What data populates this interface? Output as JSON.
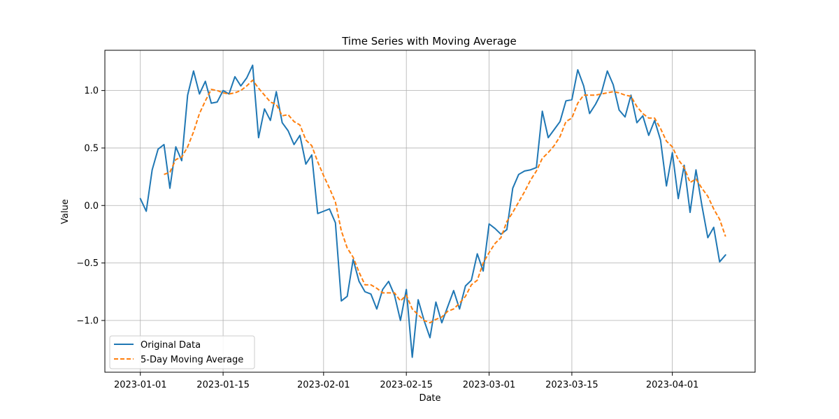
{
  "chart_data": {
    "type": "line",
    "title": "Time Series with Moving Average",
    "xlabel": "Date",
    "ylabel": "Value",
    "x_start": "2023-01-01",
    "x_step_days": 1,
    "xlim": [
      "2022-12-26",
      "2023-04-15"
    ],
    "ylim": [
      -1.45,
      1.35
    ],
    "grid": true,
    "legend_position": "lower-left",
    "x_ticks": [
      "2023-01-01",
      "2023-01-15",
      "2023-02-01",
      "2023-02-15",
      "2023-03-01",
      "2023-03-15",
      "2023-04-01"
    ],
    "y_ticks": [
      -1.0,
      -0.5,
      0.0,
      0.5,
      1.0
    ],
    "y_tick_labels": [
      "−1.0",
      "−0.5",
      "0.0",
      "0.5",
      "1.0"
    ],
    "series": [
      {
        "name": "Original Data",
        "color": "#1f77b4",
        "style": "solid",
        "values": [
          0.06,
          -0.05,
          0.31,
          0.49,
          0.53,
          0.15,
          0.51,
          0.39,
          0.96,
          1.17,
          0.97,
          1.08,
          0.89,
          0.9,
          1.0,
          0.97,
          1.12,
          1.04,
          1.11,
          1.22,
          0.59,
          0.84,
          0.74,
          0.99,
          0.72,
          0.65,
          0.53,
          0.61,
          0.36,
          0.44,
          -0.07,
          -0.05,
          -0.03,
          -0.15,
          -0.83,
          -0.79,
          -0.47,
          -0.66,
          -0.75,
          -0.77,
          -0.9,
          -0.73,
          -0.66,
          -0.78,
          -1.0,
          -0.73,
          -1.32,
          -0.82,
          -1.0,
          -1.15,
          -0.84,
          -1.02,
          -0.88,
          -0.74,
          -0.9,
          -0.7,
          -0.65,
          -0.42,
          -0.57,
          -0.16,
          -0.2,
          -0.25,
          -0.21,
          0.15,
          0.27,
          0.3,
          0.31,
          0.33,
          0.82,
          0.59,
          0.66,
          0.73,
          0.91,
          0.92,
          1.18,
          1.04,
          0.8,
          0.88,
          0.98,
          1.17,
          1.05,
          0.83,
          0.77,
          0.96,
          0.72,
          0.78,
          0.61,
          0.74,
          0.57,
          0.17,
          0.46,
          0.06,
          0.35,
          -0.06,
          0.31,
          0.0,
          -0.28,
          -0.19,
          -0.49,
          -0.43
        ]
      },
      {
        "name": "5-Day Moving Average",
        "color": "#ff7f0e",
        "style": "dashed",
        "values": [
          null,
          null,
          null,
          null,
          0.27,
          0.29,
          0.4,
          0.42,
          0.51,
          0.64,
          0.8,
          0.91,
          1.01,
          1.0,
          0.98,
          0.97,
          0.98,
          1.0,
          1.04,
          1.09,
          1.02,
          0.96,
          0.9,
          0.88,
          0.78,
          0.79,
          0.73,
          0.7,
          0.57,
          0.52,
          0.38,
          0.26,
          0.15,
          0.03,
          -0.22,
          -0.37,
          -0.45,
          -0.58,
          -0.69,
          -0.69,
          -0.72,
          -0.76,
          -0.76,
          -0.76,
          -0.83,
          -0.78,
          -0.9,
          -0.95,
          -1.0,
          -1.02,
          -0.99,
          -0.97,
          -0.92,
          -0.9,
          -0.85,
          -0.79,
          -0.69,
          -0.65,
          -0.5,
          -0.41,
          -0.33,
          -0.28,
          -0.14,
          -0.06,
          0.03,
          0.12,
          0.22,
          0.3,
          0.41,
          0.46,
          0.52,
          0.6,
          0.73,
          0.76,
          0.89,
          0.96,
          0.96,
          0.96,
          0.97,
          0.98,
          0.99,
          0.98,
          0.96,
          0.95,
          0.86,
          0.8,
          0.76,
          0.76,
          0.67,
          0.56,
          0.51,
          0.4,
          0.33,
          0.2,
          0.23,
          0.15,
          0.08,
          -0.03,
          -0.12,
          -0.27
        ]
      }
    ]
  }
}
